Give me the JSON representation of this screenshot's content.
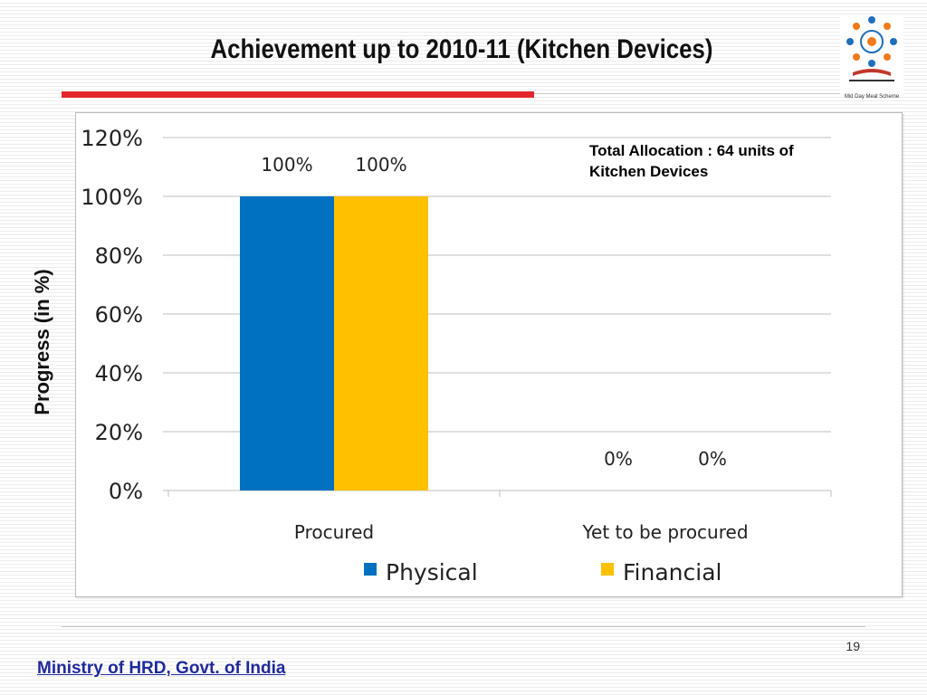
{
  "slide": {
    "title": "Achievement up to 2010-11 (Kitchen Devices)",
    "page_number": "19",
    "footer": "Ministry of HRD, Govt. of India",
    "logo_text": "Mid Day Meal Scheme"
  },
  "note": {
    "line1": "Total Allocation : 64 units of",
    "line2": "Kitchen Devices"
  },
  "colors": {
    "physical": "#0070c0",
    "financial": "#ffc000",
    "title_rule": "#e3262b",
    "footer": "#1f2a9a"
  },
  "chart_data": {
    "type": "bar",
    "categories": [
      "Procured",
      "Yet to be procured"
    ],
    "series": [
      {
        "name": "Physical",
        "values": [
          100,
          0
        ],
        "labels": [
          "100%",
          "0%"
        ]
      },
      {
        "name": "Financial",
        "values": [
          100,
          0
        ],
        "labels": [
          "100%",
          "0%"
        ]
      }
    ],
    "ylabel": "Progress (in %)",
    "ylim": [
      0,
      120
    ],
    "yticks": [
      "0%",
      "20%",
      "40%",
      "60%",
      "80%",
      "100%",
      "120%"
    ],
    "ytick_values": [
      0,
      20,
      40,
      60,
      80,
      100,
      120
    ],
    "grid": true,
    "legend": "bottom"
  }
}
